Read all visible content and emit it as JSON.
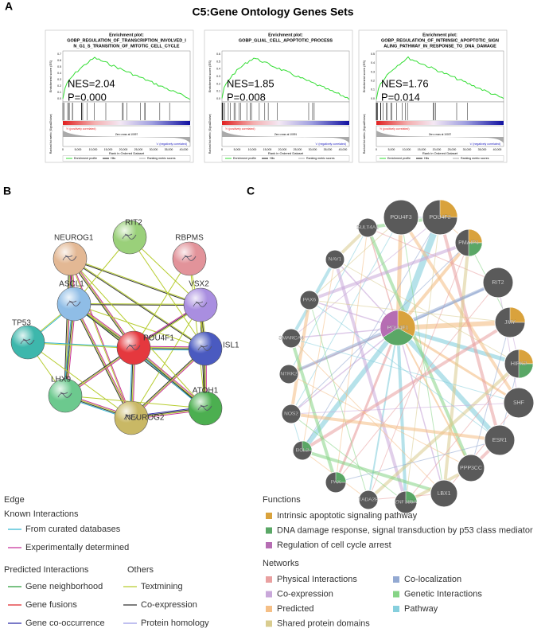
{
  "panelA": {
    "label": "A",
    "title": "C5:Gene Ontology Genes Sets",
    "x_ticks": [
      "0",
      "5,000",
      "10,000",
      "15,000",
      "20,000",
      "25,000",
      "30,000",
      "35,000",
      "40,000"
    ],
    "x_label": "Rank in Ordered Dataset",
    "es_label": "Enrichment score (ES)",
    "rank_label": "Ranked list metric (Signal2Noise)",
    "pos_label": "'h' (positively correlated)",
    "neg_label": "'c' (negatively correlated)",
    "legend": [
      "Enrichment profile",
      "Hits",
      "Ranking metric scores"
    ],
    "plots": [
      {
        "header": "Enrichment plot:",
        "name": [
          "GOBP_REGULATION_OF_TRANSCRIPTION_INVOLVED_I",
          "N_G1_S_TRANSITION_OF_MITOTIC_CELL_CYCLE"
        ],
        "nes": "NES=2.04",
        "p": "P=0.000",
        "zero": "Zero cross at 10097",
        "es_ticks": [
          "0.0",
          "0.1",
          "0.2",
          "0.3",
          "0.4",
          "0.5",
          "0.6",
          "0.7"
        ]
      },
      {
        "header": "Enrichment plot:",
        "name": [
          "GOBP_GLIAL_CELL_APOPTOTIC_PROCESS"
        ],
        "nes": "NES=1.85",
        "p": "P=0.008",
        "zero": "Zero cross at 10091",
        "es_ticks": [
          "0.0",
          "0.1",
          "0.2",
          "0.3",
          "0.4",
          "0.5",
          "0.6"
        ]
      },
      {
        "header": "Enrichment plot:",
        "name": [
          "GOBP_REGULATION_OF_INTRINSIC_APOPTOTIC_SIGN",
          "ALING_PATHWAY_IN_RESPONSE_TO_DNA_DAMAGE"
        ],
        "nes": "NES=1.76",
        "p": "P=0.014",
        "zero": "Zero cross at 10037",
        "es_ticks": [
          "0.0",
          "0.1",
          "0.2",
          "0.3",
          "0.4",
          "0.5"
        ]
      }
    ]
  },
  "panelB": {
    "label": "B",
    "nodes": [
      "RIT2",
      "NEUROG1",
      "RBPMS",
      "ASCL1",
      "VSX2",
      "TP53",
      "POU4F1",
      "ISL1",
      "LHX9",
      "ATOH1",
      "NEUROG2"
    ]
  },
  "panelC": {
    "label": "C",
    "center": "POU4F1",
    "nodes": [
      "POU4F3",
      "POU4F2",
      "SULT4A1",
      "PMAIP1",
      "NAV1",
      "RIT2",
      "PAX6",
      "JMY",
      "SMARCA4",
      "HIPK2",
      "NTRK2",
      "SHF",
      "NOS2",
      "ESR1",
      "BCL2",
      "PPP3CC",
      "PAX",
      "LBX1",
      "TADA2B",
      "ZNF385A"
    ]
  },
  "edge_legend": {
    "title": "Edge",
    "known": {
      "title": "Known Interactions",
      "items": [
        {
          "name": "From curated databases",
          "color": "#35b6d0"
        },
        {
          "name": "Experimentally determined",
          "color": "#c8309a"
        }
      ]
    },
    "predicted": {
      "title": "Predicted Interactions",
      "items": [
        {
          "name": "Gene neighborhood",
          "color": "#2a9d3a"
        },
        {
          "name": "Gene fusions",
          "color": "#e0282c"
        },
        {
          "name": "Gene co-occurrence",
          "color": "#2a2aa8"
        }
      ]
    },
    "others": {
      "title": "Others",
      "items": [
        {
          "name": "Textmining",
          "color": "#b6cc2e"
        },
        {
          "name": "Co-expression",
          "color": "#333333"
        },
        {
          "name": "Protein homology",
          "color": "#9a9ae6"
        }
      ]
    }
  },
  "functions": {
    "title": "Functions",
    "items": [
      {
        "name": "Intrinsic apoptotic signaling pathway",
        "color": "#d9a23c"
      },
      {
        "name": "DNA damage response, signal transduction by p53 class mediator",
        "color": "#5aa766"
      },
      {
        "name": "Regulation of cell cycle arrest",
        "color": "#b66db3"
      }
    ]
  },
  "networks": {
    "title": "Networks",
    "items": [
      {
        "name": "Physical Interactions",
        "color": "#e9a0a0"
      },
      {
        "name": "Co-localization",
        "color": "#93a9d2"
      },
      {
        "name": "Co-expression",
        "color": "#c9a8da"
      },
      {
        "name": "Genetic Interactions",
        "color": "#86d486"
      },
      {
        "name": "Predicted",
        "color": "#f5bf86"
      },
      {
        "name": "Pathway",
        "color": "#86cfdd"
      },
      {
        "name": "Shared protein domains",
        "color": "#d9cc8f"
      }
    ]
  }
}
